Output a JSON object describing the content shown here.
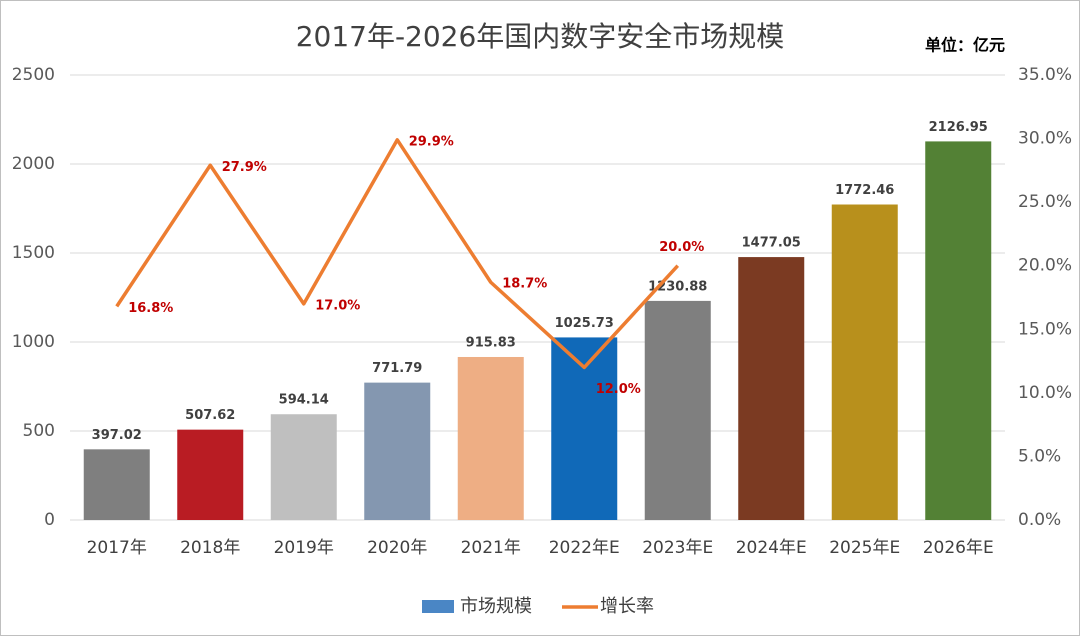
{
  "chart_data": {
    "type": "bar_line",
    "title": "2017年-2026年国内数字安全市场规模",
    "annotation": "单位：亿元",
    "categories": [
      "2017年",
      "2018年",
      "2019年",
      "2020年",
      "2021年",
      "2022年E",
      "2023年E",
      "2024年E",
      "2025年E",
      "2026年E"
    ],
    "series": [
      {
        "name": "市场规模",
        "type": "bar",
        "color": "#4a86c5",
        "colors": [
          "#7f7f7f",
          "#b91c23",
          "#bfbfbf",
          "#8497b0",
          "#eeae84",
          "#1069b8",
          "#7f7f7f",
          "#7b3a22",
          "#b8901c",
          "#538135"
        ],
        "values": [
          397.02,
          507.62,
          594.14,
          771.79,
          915.83,
          1025.73,
          1230.88,
          1477.05,
          1772.46,
          2126.95
        ]
      },
      {
        "name": "增长率",
        "type": "line",
        "axis": "y2",
        "color": "#ed7d31",
        "values": [
          16.8,
          27.9,
          17.0,
          29.9,
          18.7,
          12.0,
          20.0,
          null,
          null,
          null
        ],
        "value_labels": [
          "16.8%",
          "27.9%",
          "17.0%",
          "29.9%",
          "18.7%",
          "12.0%",
          "20.0%",
          null,
          null,
          null
        ]
      }
    ],
    "ylim": [
      0,
      2500
    ],
    "yticks": [
      0,
      500,
      1000,
      1500,
      2000,
      2500
    ],
    "y2lim": [
      0,
      35
    ],
    "y2ticks": [
      {
        "value": 0,
        "label": "0.0%"
      },
      {
        "value": 5,
        "label": "5.0%"
      },
      {
        "value": 10,
        "label": "10.0%"
      },
      {
        "value": 15,
        "label": "15.0%"
      },
      {
        "value": 20,
        "label": "20.0%"
      },
      {
        "value": 25,
        "label": "25.0%"
      },
      {
        "value": 30,
        "label": "30.0%"
      },
      {
        "value": 35,
        "label": "35.0%"
      }
    ],
    "grid": true,
    "legend": "bottom"
  }
}
